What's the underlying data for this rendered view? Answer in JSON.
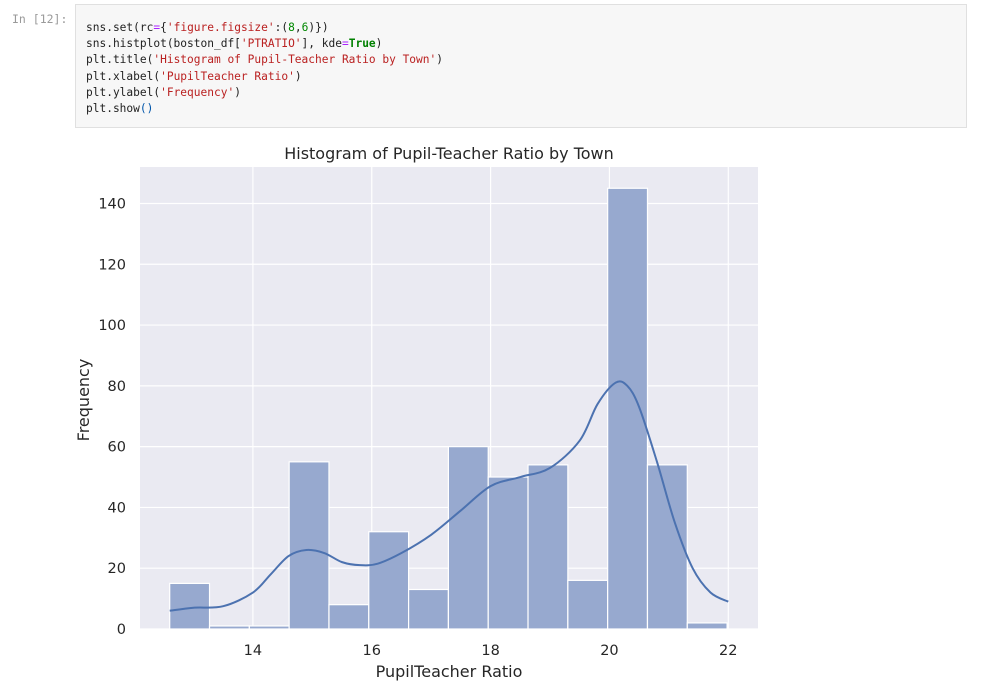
{
  "cell": {
    "prompt": "In [12]:",
    "code_lines": [
      [
        {
          "t": "sns.set(rc",
          "c": ""
        },
        {
          "t": "=",
          "c": "o"
        },
        {
          "t": "{",
          "c": ""
        },
        {
          "t": "'figure.figsize'",
          "c": "s"
        },
        {
          "t": ":(",
          "c": ""
        },
        {
          "t": "8",
          "c": "n"
        },
        {
          "t": ",",
          "c": ""
        },
        {
          "t": "6",
          "c": "n"
        },
        {
          "t": ")})",
          "c": ""
        }
      ],
      [
        {
          "t": "sns.histplot(boston_df[",
          "c": ""
        },
        {
          "t": "'PTRATIO'",
          "c": "s"
        },
        {
          "t": "], kde",
          "c": ""
        },
        {
          "t": "=",
          "c": "o"
        },
        {
          "t": "True",
          "c": "kw"
        },
        {
          "t": ")",
          "c": ""
        }
      ],
      [
        {
          "t": "plt.title(",
          "c": ""
        },
        {
          "t": "'Histogram of Pupil-Teacher Ratio by Town'",
          "c": "s"
        },
        {
          "t": ")",
          "c": ""
        }
      ],
      [
        {
          "t": "plt.xlabel(",
          "c": ""
        },
        {
          "t": "'PupilTeacher Ratio'",
          "c": "s"
        },
        {
          "t": ")",
          "c": ""
        }
      ],
      [
        {
          "t": "plt.ylabel(",
          "c": ""
        },
        {
          "t": "'Frequency'",
          "c": "s"
        },
        {
          "t": ")",
          "c": ""
        }
      ],
      [
        {
          "t": "plt.show",
          "c": ""
        },
        {
          "t": "()",
          "c": "p"
        }
      ]
    ]
  },
  "colors": {
    "axes_bg": "#eaeaf2",
    "grid": "#ffffff",
    "bar_fill": "#97a9cf",
    "bar_edge": "#ffffff",
    "kde_line": "#4c72b0",
    "text": "#262626"
  },
  "chart_data": {
    "type": "bar",
    "title": "Histogram of Pupil-Teacher Ratio by Town",
    "xlabel": "PupilTeacher Ratio",
    "ylabel": "Frequency",
    "xlim": [
      12.1,
      22.5
    ],
    "ylim": [
      0,
      152
    ],
    "xticks": [
      14,
      16,
      18,
      20,
      22
    ],
    "yticks": [
      0,
      20,
      40,
      60,
      80,
      100,
      120,
      140
    ],
    "grid": true,
    "bin_edges": [
      12.6,
      13.27,
      13.94,
      14.61,
      15.28,
      15.95,
      16.62,
      17.29,
      17.96,
      18.63,
      19.3,
      19.97,
      20.64,
      21.31,
      21.98
    ],
    "counts": [
      15,
      1,
      1,
      55,
      8,
      32,
      13,
      60,
      50,
      54,
      16,
      145,
      54,
      2
    ],
    "kde": {
      "x": [
        12.6,
        13.0,
        13.5,
        14.0,
        14.3,
        14.6,
        14.9,
        15.2,
        15.5,
        15.8,
        16.1,
        16.5,
        17.0,
        17.5,
        18.0,
        18.5,
        19.0,
        19.5,
        19.8,
        20.1,
        20.3,
        20.5,
        20.8,
        21.1,
        21.4,
        21.7,
        22.0
      ],
      "y": [
        6,
        7,
        7.5,
        12,
        18,
        24,
        26,
        25,
        22,
        21,
        21.5,
        25,
        31,
        39,
        47,
        50,
        53,
        62,
        74,
        81,
        80,
        73,
        55,
        35,
        20,
        12,
        9
      ]
    }
  }
}
